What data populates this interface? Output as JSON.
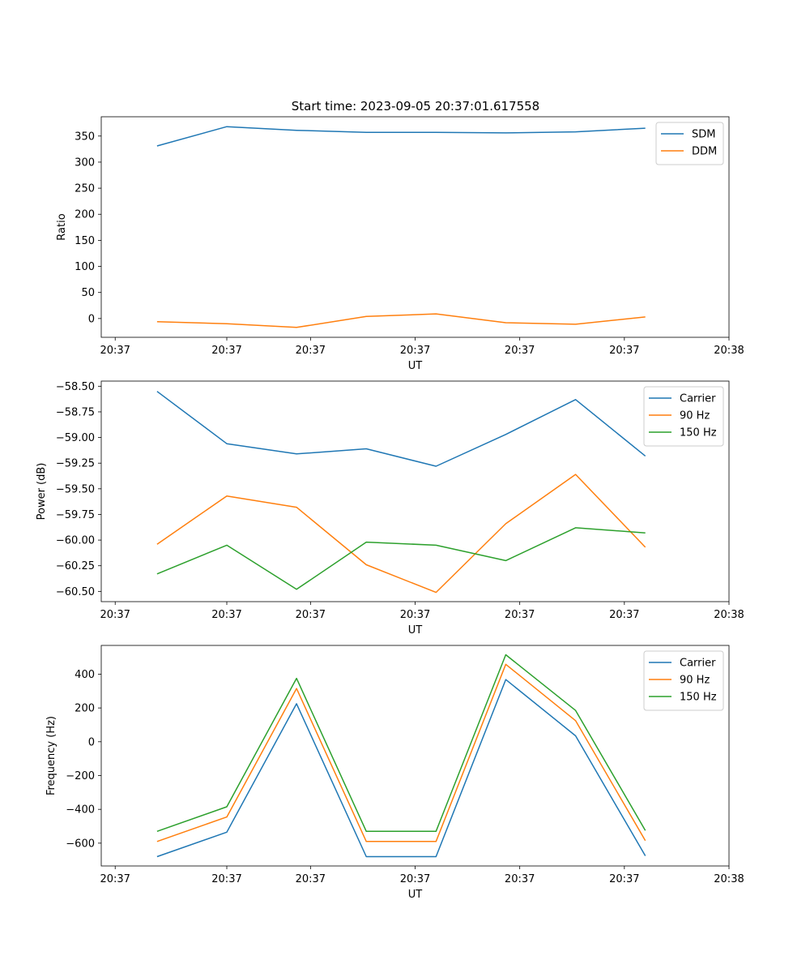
{
  "title": "Start time: 2023-09-05 20:37:01.617558",
  "chart_data": [
    {
      "type": "line",
      "title": "Start time: 2023-09-05 20:37:01.617558",
      "xlabel": "UT",
      "ylabel": "Ratio",
      "x": [
        1,
        2,
        3,
        4,
        5,
        6,
        7,
        8
      ],
      "xlim": [
        0.2,
        9.2
      ],
      "xticks": [
        0.4,
        2.0,
        3.2,
        4.7,
        6.2,
        7.7,
        9.2
      ],
      "xtick_labels": [
        "20:37",
        "20:37",
        "20:37",
        "20:37",
        "20:37",
        "20:37",
        "20:38"
      ],
      "ylim": [
        -36,
        387
      ],
      "yticks": [
        0,
        50,
        100,
        150,
        200,
        250,
        300,
        350
      ],
      "ytick_labels": [
        "0",
        "50",
        "100",
        "150",
        "200",
        "250",
        "300",
        "350"
      ],
      "legend": "top-right",
      "series": [
        {
          "name": "SDM",
          "color": "#1f77b4",
          "values": [
            331,
            368,
            361,
            357,
            357,
            356,
            358,
            365
          ]
        },
        {
          "name": "DDM",
          "color": "#ff7f0e",
          "values": [
            -6,
            -10,
            -17,
            4,
            9,
            -8,
            -11,
            3
          ]
        }
      ]
    },
    {
      "type": "line",
      "xlabel": "UT",
      "ylabel": "Power (dB)",
      "x": [
        1,
        2,
        3,
        4,
        5,
        6,
        7,
        8
      ],
      "xlim": [
        0.2,
        9.2
      ],
      "xticks": [
        0.4,
        2.0,
        3.2,
        4.7,
        6.2,
        7.7,
        9.2
      ],
      "xtick_labels": [
        "20:37",
        "20:37",
        "20:37",
        "20:37",
        "20:37",
        "20:37",
        "20:38"
      ],
      "ylim": [
        -60.6,
        -58.45
      ],
      "yticks": [
        -58.5,
        -58.75,
        -59.0,
        -59.25,
        -59.5,
        -59.75,
        -60.0,
        -60.25,
        -60.5
      ],
      "ytick_labels": [
        "−58.50",
        "−58.75",
        "−59.00",
        "−59.25",
        "−59.50",
        "−59.75",
        "−60.00",
        "−60.25",
        "−60.50"
      ],
      "legend": "top-right",
      "series": [
        {
          "name": "Carrier",
          "color": "#1f77b4",
          "values": [
            -58.55,
            -59.06,
            -59.16,
            -59.11,
            -59.28,
            -58.97,
            -58.63,
            -59.18
          ]
        },
        {
          "name": "90 Hz",
          "color": "#ff7f0e",
          "values": [
            -60.04,
            -59.57,
            -59.68,
            -60.24,
            -60.51,
            -59.84,
            -59.36,
            -60.07
          ]
        },
        {
          "name": "150 Hz",
          "color": "#2ca02c",
          "values": [
            -60.33,
            -60.05,
            -60.48,
            -60.02,
            -60.05,
            -60.2,
            -59.88,
            -59.93
          ]
        }
      ]
    },
    {
      "type": "line",
      "xlabel": "UT",
      "ylabel": "Frequency (Hz)",
      "x": [
        1,
        2,
        3,
        4,
        5,
        6,
        7,
        8
      ],
      "xlim": [
        0.2,
        9.2
      ],
      "xticks": [
        0.4,
        2.0,
        3.2,
        4.7,
        6.2,
        7.7,
        9.2
      ],
      "xtick_labels": [
        "20:37",
        "20:37",
        "20:37",
        "20:37",
        "20:37",
        "20:37",
        "20:38"
      ],
      "ylim": [
        -735,
        570
      ],
      "yticks": [
        -600,
        -400,
        -200,
        0,
        200,
        400
      ],
      "ytick_labels": [
        "−600",
        "−400",
        "−200",
        "0",
        "200",
        "400"
      ],
      "legend": "top-right",
      "series": [
        {
          "name": "Carrier",
          "color": "#1f77b4",
          "values": [
            -680,
            -535,
            225,
            -680,
            -680,
            368,
            35,
            -675
          ]
        },
        {
          "name": "90 Hz",
          "color": "#ff7f0e",
          "values": [
            -590,
            -445,
            315,
            -590,
            -590,
            458,
            125,
            -585
          ]
        },
        {
          "name": "150 Hz",
          "color": "#2ca02c",
          "values": [
            -530,
            -385,
            375,
            -530,
            -530,
            515,
            185,
            -525
          ]
        }
      ]
    }
  ]
}
